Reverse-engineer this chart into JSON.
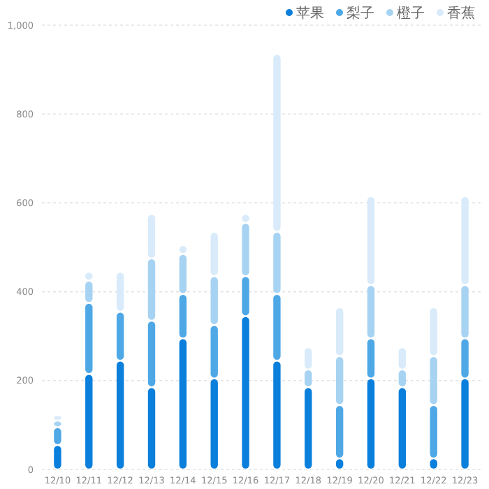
{
  "chart_data": {
    "type": "bar",
    "stacked": true,
    "categories": [
      "12/10",
      "12/11",
      "12/12",
      "12/13",
      "12/14",
      "12/15",
      "12/16",
      "12/17",
      "12/18",
      "12/19",
      "12/20",
      "12/21",
      "12/22",
      "12/23"
    ],
    "series": [
      {
        "name": "苹果",
        "color": "#0a7fdc",
        "values": [
          55,
          215,
          245,
          185,
          295,
          205,
          345,
          245,
          185,
          25,
          205,
          185,
          25,
          205
        ]
      },
      {
        "name": "梨子",
        "color": "#4fa8e6",
        "values": [
          40,
          160,
          110,
          150,
          100,
          120,
          90,
          150,
          0,
          120,
          90,
          0,
          120,
          90
        ]
      },
      {
        "name": "橙子",
        "color": "#a7d3f3",
        "values": [
          15,
          50,
          0,
          140,
          90,
          110,
          120,
          140,
          40,
          110,
          120,
          40,
          110,
          120
        ]
      },
      {
        "name": "香蕉",
        "color": "#d9ebfa",
        "values": [
          12,
          20,
          90,
          100,
          20,
          100,
          20,
          400,
          50,
          110,
          200,
          50,
          110,
          200
        ]
      }
    ],
    "ylim": [
      0,
      1000
    ],
    "yticks": [
      0,
      200,
      400,
      600,
      800,
      {
        "value": 1000,
        "label": "1,000"
      }
    ],
    "grid": "y",
    "legend": "top right"
  }
}
